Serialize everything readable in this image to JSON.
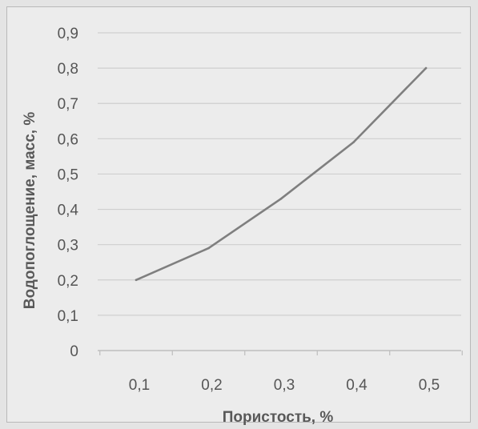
{
  "chart_data": {
    "type": "line",
    "xlabel": "Пористость, %",
    "ylabel": "Водопоглощение, масс, %",
    "x": [
      0.1,
      0.2,
      0.3,
      0.4,
      0.5
    ],
    "x_tick_labels": [
      "0,1",
      "0,2",
      "0,3",
      "0,4",
      "0,5"
    ],
    "y_ticks": [
      0,
      0.1,
      0.2,
      0.3,
      0.4,
      0.5,
      0.6,
      0.7,
      0.8,
      0.9
    ],
    "y_tick_labels": [
      "0",
      "0,1",
      "0,2",
      "0,3",
      "0,4",
      "0,5",
      "0,6",
      "0,7",
      "0,8",
      "0,9"
    ],
    "series": [
      {
        "values": [
          0.2,
          0.29,
          0.43,
          0.59,
          0.8
        ]
      }
    ],
    "ylim": [
      0,
      0.9
    ],
    "grid": true,
    "legend": "none",
    "colors": {
      "line": "#7f7f7f",
      "grid": "#cfcfcf",
      "axis": "#bdbdbd",
      "text": "#555555"
    }
  }
}
